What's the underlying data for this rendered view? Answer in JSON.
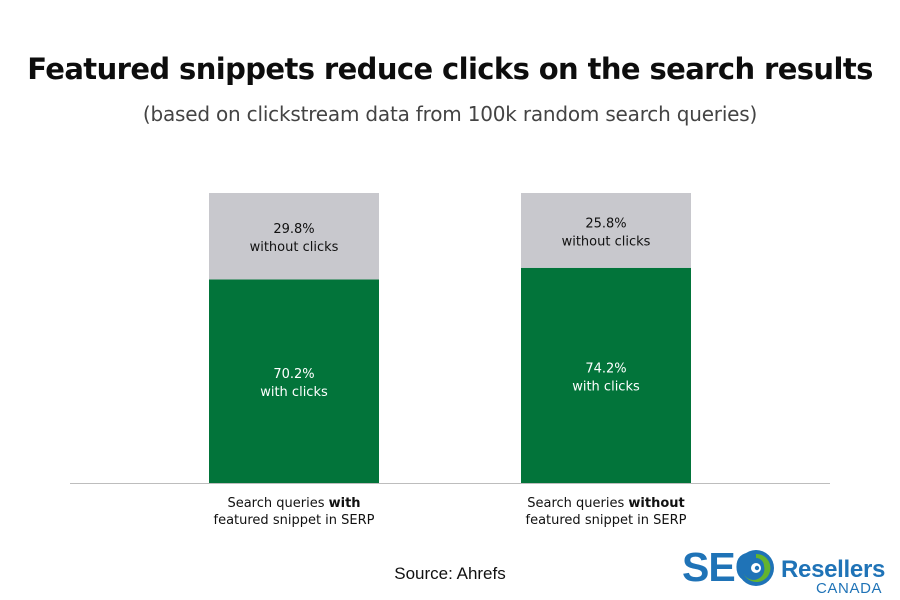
{
  "chart_data": {
    "type": "bar",
    "stacked": true,
    "percent": true,
    "title": "Featured snippets reduce clicks on the search results",
    "subtitle": "(based on clickstream data from 100k random search queries)",
    "categories": [
      {
        "line1_prefix": "Search queries ",
        "line1_bold": "with",
        "line2": "featured snippet in SERP"
      },
      {
        "line1_prefix": "Search queries ",
        "line1_bold": "without",
        "line2": "featured snippet in SERP"
      }
    ],
    "series": [
      {
        "name": "with clicks",
        "color": "#02743a",
        "values": [
          70.2,
          74.2
        ],
        "labels": [
          "70.2%",
          "74.2%"
        ]
      },
      {
        "name": "without clicks",
        "color": "#c8c8cd",
        "values": [
          29.8,
          25.8
        ],
        "labels": [
          "29.8%",
          "25.8%"
        ]
      }
    ],
    "ylim": [
      0,
      100
    ],
    "grid": false,
    "axis_color": "#bdbdbd"
  },
  "source": "Source: Ahrefs",
  "logo": {
    "seo": "SEO",
    "resellers": "Resellers",
    "canada": "CANADA",
    "color": "#1f73b7",
    "accent": "#64b42d"
  }
}
